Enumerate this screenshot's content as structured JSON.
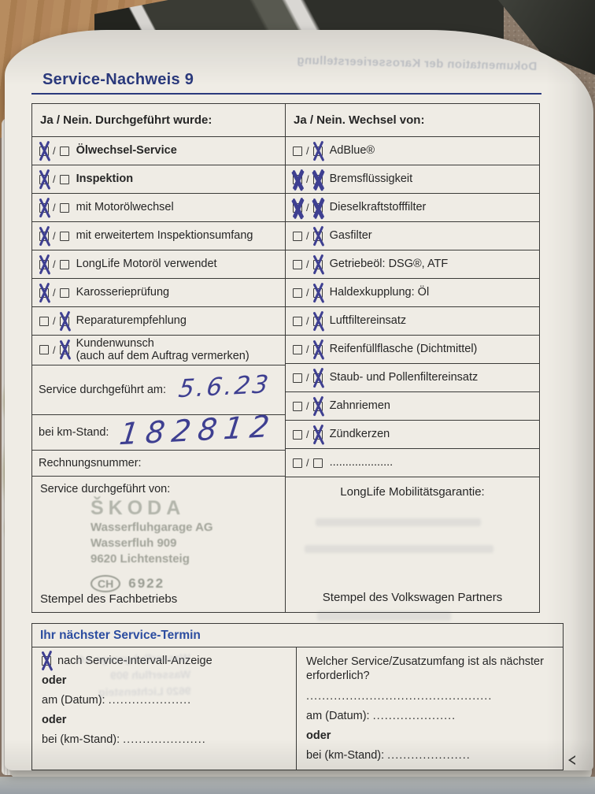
{
  "page": {
    "title": "Service-Nachweis 9"
  },
  "colors": {
    "navy": "#2b3a7d",
    "headerblue": "#2c4da0",
    "pen": "#3e3f91",
    "stampgray": "#999c92"
  },
  "bleed_through_text": "Dokumentation der Karosserieerstellung",
  "checkbox": {
    "separator": "/"
  },
  "main_table": {
    "left": {
      "header": "Ja / Nein. Durchgeführt wurde:",
      "items": [
        {
          "label": "Ölwechsel-Service",
          "checked": "ja",
          "bold": true
        },
        {
          "label": "Inspektion",
          "checked": "ja",
          "bold": true
        },
        {
          "label": "mit Motorölwechsel",
          "checked": "ja"
        },
        {
          "label": "mit erweitertem Inspektionsumfang",
          "checked": "ja"
        },
        {
          "label": "LongLife Motoröl verwendet",
          "checked": "ja"
        },
        {
          "label": "Karosserieprüfung",
          "checked": "ja"
        },
        {
          "label": "Reparaturempfehlung",
          "checked": "nein"
        },
        {
          "label": "Kundenwunsch",
          "sublabel": "(auch auf dem Auftrag vermerken)",
          "checked": "nein"
        }
      ],
      "date_label": "Service durchgeführt am:",
      "date_value": "5.6.23",
      "km_label": "bei km-Stand:",
      "km_value": "182812",
      "invoice_label": "Rechnungsnummer:",
      "performed_by_label": "Service durchgeführt von:",
      "stamp": {
        "brand": "ŠKODA",
        "line1": "Wasserfluhgarage AG",
        "line2": "Wasserfluh 909",
        "line3": "9620 Lichtensteig",
        "country": "CH",
        "number": "6922"
      },
      "stamp_caption": "Stempel des Fachbetriebs"
    },
    "right": {
      "header": "Ja / Nein. Wechsel von:",
      "items": [
        {
          "label": "AdBlue®",
          "checked": "nein"
        },
        {
          "label": "Bremsflüssigkeit",
          "checked": "both"
        },
        {
          "label": "Dieselkraftstofffilter",
          "checked": "both"
        },
        {
          "label": "Gasfilter",
          "checked": "nein"
        },
        {
          "label": "Getriebeöl: DSG®, ATF",
          "checked": "nein"
        },
        {
          "label": "Haldexkupplung: Öl",
          "checked": "nein"
        },
        {
          "label": "Luftfiltereinsatz",
          "checked": "nein"
        },
        {
          "label": "Reifenfüllflasche (Dichtmittel)",
          "checked": "nein"
        },
        {
          "label": "Staub- und Pollenfiltereinsatz",
          "checked": "nein"
        },
        {
          "label": "Zahnriemen",
          "checked": "nein"
        },
        {
          "label": "Zündkerzen",
          "checked": "nein"
        },
        {
          "label": "....................",
          "checked": "none"
        }
      ],
      "warranty_label": "LongLife Mobilitätsgarantie:",
      "stamp_caption": "Stempel des Volkswagen Partners"
    }
  },
  "next_service": {
    "header": "Ihr nächster Service-Termin",
    "left": {
      "option_label": "nach Service-Intervall-Anzeige",
      "option_checked": true,
      "or1": "oder",
      "date_label": "am (Datum):",
      "date_dots": ".....................",
      "or2": "oder",
      "km_label": "bei (km-Stand):",
      "km_dots": "....................."
    },
    "right": {
      "question": "Welcher Service/Zusatzumfang ist als nächster erforderlich?",
      "answer_dots": "...............................................",
      "date_label": "am (Datum):",
      "date_dots": ".....................",
      "or": "oder",
      "km_label": "bei (km-Stand):",
      "km_dots": "....................."
    }
  }
}
